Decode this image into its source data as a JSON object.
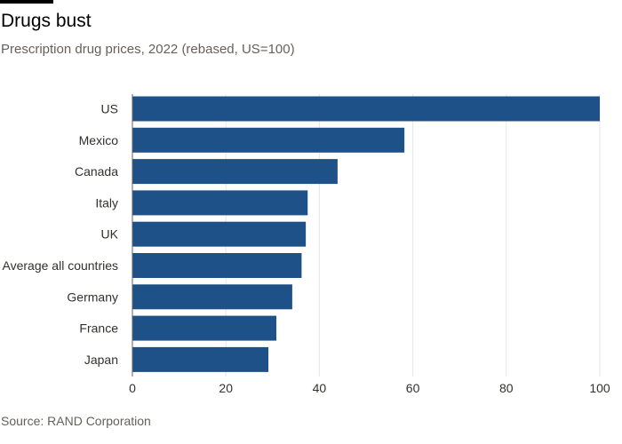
{
  "title": "Drugs bust",
  "subtitle": "Prescription drug prices, 2022 (rebased, US=100)",
  "source": "Source: RAND Corporation",
  "colors": {
    "bar": "#1e5187",
    "grid": "#e9e6e3",
    "axis": "#66605c",
    "text": "#33302e"
  },
  "chart_data": {
    "type": "bar",
    "orientation": "horizontal",
    "title": "Drugs bust",
    "subtitle": "Prescription drug prices, 2022 (rebased, US=100)",
    "categories": [
      "US",
      "Mexico",
      "Canada",
      "Italy",
      "UK",
      "Average all countries",
      "Germany",
      "France",
      "Japan"
    ],
    "values": [
      100,
      58.2,
      43.9,
      37.5,
      37.1,
      36.2,
      34.2,
      30.8,
      29.1
    ],
    "xlabel": "",
    "ylabel": "",
    "xlim": [
      0,
      100
    ],
    "xticks": [
      "0",
      "20",
      "40",
      "60",
      "80",
      "100"
    ],
    "grid": true,
    "legend": "none"
  }
}
